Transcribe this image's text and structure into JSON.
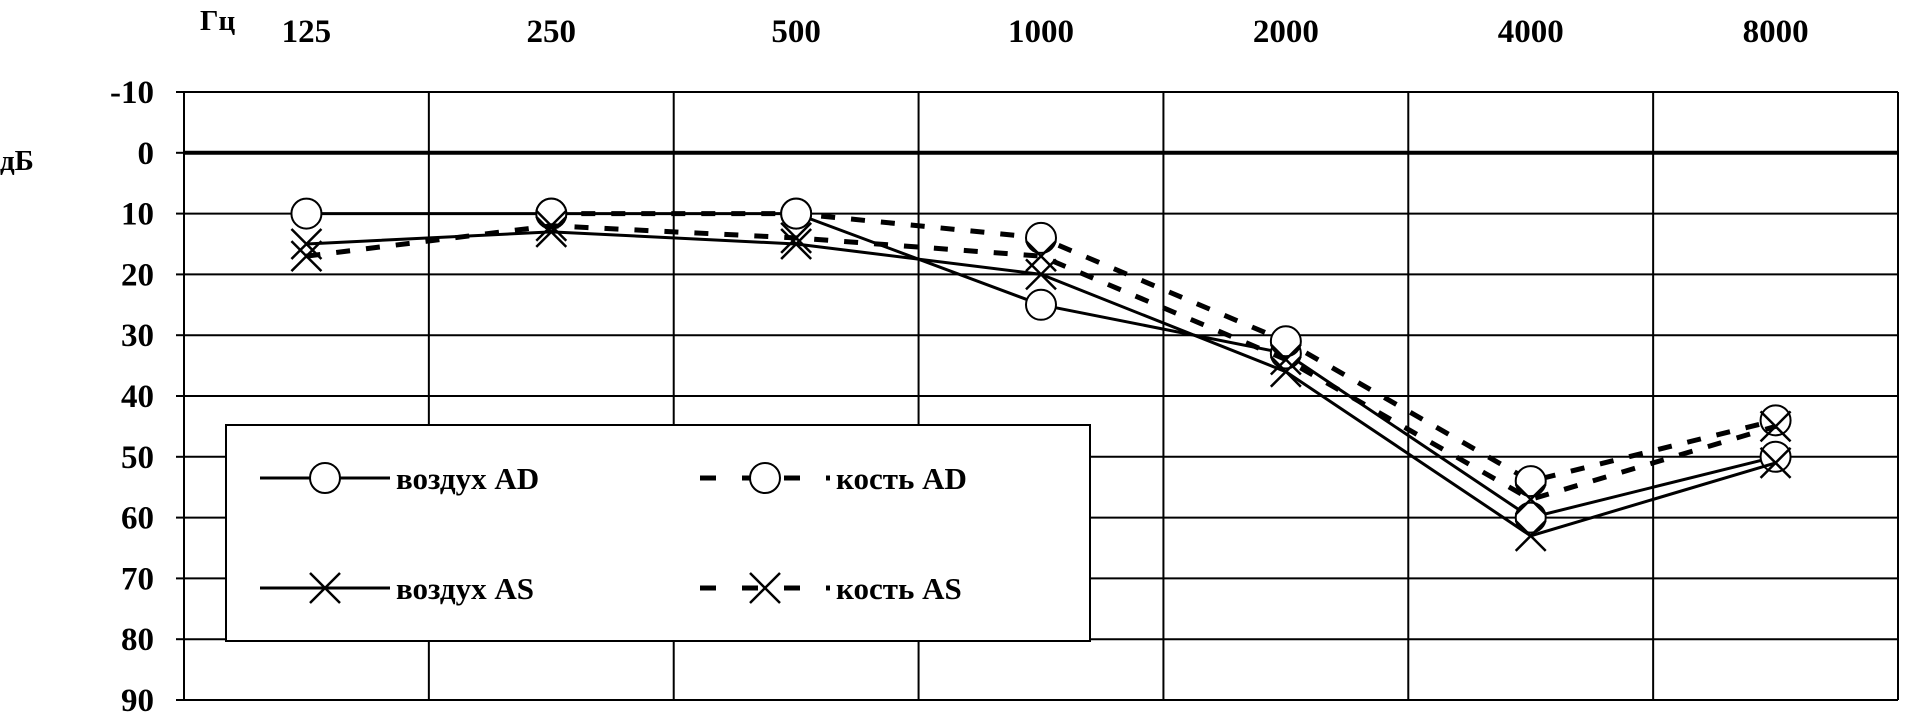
{
  "chart_data": {
    "type": "line",
    "title": "",
    "xlabel": "Гц",
    "ylabel": "дБ",
    "x": [
      "125",
      "250",
      "500",
      "1000",
      "2000",
      "4000",
      "8000"
    ],
    "yticks": [
      "-10",
      "0",
      "10",
      "20",
      "30",
      "40",
      "50",
      "60",
      "70",
      "80",
      "90"
    ],
    "ylim": [
      -10,
      90
    ],
    "y_inverted": true,
    "grid": true,
    "legend_position": "bottom-left",
    "series": [
      {
        "name": "воздух AD",
        "marker": "circle",
        "dash": "solid",
        "values": [
          10,
          10,
          10,
          25,
          33,
          60,
          50
        ]
      },
      {
        "name": "кость AD",
        "marker": "circle",
        "dash": "dashed",
        "values": [
          null,
          10,
          10,
          14,
          31,
          54,
          44
        ]
      },
      {
        "name": "воздух AS",
        "marker": "cross",
        "dash": "solid",
        "values": [
          15,
          13,
          15,
          20,
          36,
          63,
          51
        ]
      },
      {
        "name": "кость AS",
        "marker": "cross",
        "dash": "dashed",
        "values": [
          17,
          12,
          14,
          17,
          34,
          57,
          45
        ]
      }
    ]
  }
}
